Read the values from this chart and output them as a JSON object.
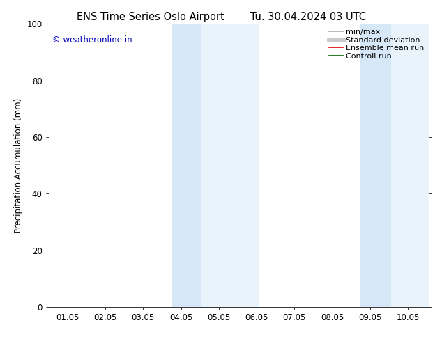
{
  "title": "ENS Time Series Oslo Airport",
  "title2": "Tu. 30.04.2024 03 UTC",
  "ylabel": "Precipitation Accumulation (mm)",
  "xlabel": "",
  "ylim": [
    0,
    100
  ],
  "yticks": [
    0,
    20,
    40,
    60,
    80,
    100
  ],
  "xtick_labels": [
    "01.05",
    "02.05",
    "03.05",
    "04.05",
    "05.05",
    "06.05",
    "07.05",
    "08.05",
    "09.05",
    "10.05"
  ],
  "xtick_positions": [
    1,
    2,
    3,
    4,
    5,
    6,
    7,
    8,
    9,
    10
  ],
  "xlim": [
    0.5,
    10.55
  ],
  "shaded_bands": [
    {
      "x_start": 3.75,
      "x_end": 4.55,
      "color": "#d6e8f7"
    },
    {
      "x_start": 4.55,
      "x_end": 6.05,
      "color": "#e8f3fb"
    },
    {
      "x_start": 8.75,
      "x_end": 9.55,
      "color": "#d6e8f7"
    },
    {
      "x_start": 9.55,
      "x_end": 10.55,
      "color": "#e8f3fb"
    }
  ],
  "copyright_text": "© weatheronline.in",
  "copyright_color": "#0000bb",
  "legend_items": [
    {
      "label": "min/max",
      "color": "#aaaaaa",
      "lw": 1.2,
      "ls": "-"
    },
    {
      "label": "Standard deviation",
      "color": "#cccccc",
      "lw": 5,
      "ls": "-"
    },
    {
      "label": "Ensemble mean run",
      "color": "#dd0000",
      "lw": 1.2,
      "ls": "-"
    },
    {
      "label": "Controll run",
      "color": "#006600",
      "lw": 1.2,
      "ls": "-"
    }
  ],
  "background_color": "#ffffff",
  "plot_bg_color": "#ffffff",
  "font_size": 8.5,
  "title_fontsize": 10.5
}
